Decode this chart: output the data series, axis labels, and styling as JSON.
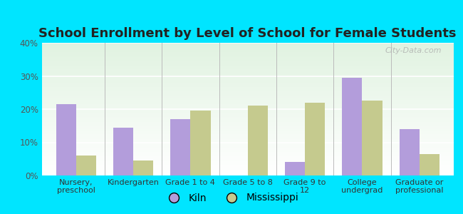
{
  "title": "School Enrollment by Level of School for Female Students",
  "categories": [
    "Nursery,\npreschool",
    "Kindergarten",
    "Grade 1 to 4",
    "Grade 5 to 8",
    "Grade 9 to\n12",
    "College\nundergrad",
    "Graduate or\nprofessional"
  ],
  "kiln_values": [
    21.5,
    14.5,
    17.0,
    0.0,
    4.0,
    29.5,
    14.0
  ],
  "mississippi_values": [
    6.0,
    4.5,
    19.5,
    21.0,
    22.0,
    22.5,
    6.5
  ],
  "kiln_color": "#b39ddb",
  "mississippi_color": "#c5ca8e",
  "background_outer": "#00e5ff",
  "ylim": [
    0,
    40
  ],
  "yticks": [
    0,
    10,
    20,
    30,
    40
  ],
  "ytick_labels": [
    "0%",
    "10%",
    "20%",
    "30%",
    "40%"
  ],
  "bar_width": 0.35,
  "title_fontsize": 13,
  "legend_labels": [
    "Kiln",
    "Mississippi"
  ],
  "watermark": "City-Data.com"
}
